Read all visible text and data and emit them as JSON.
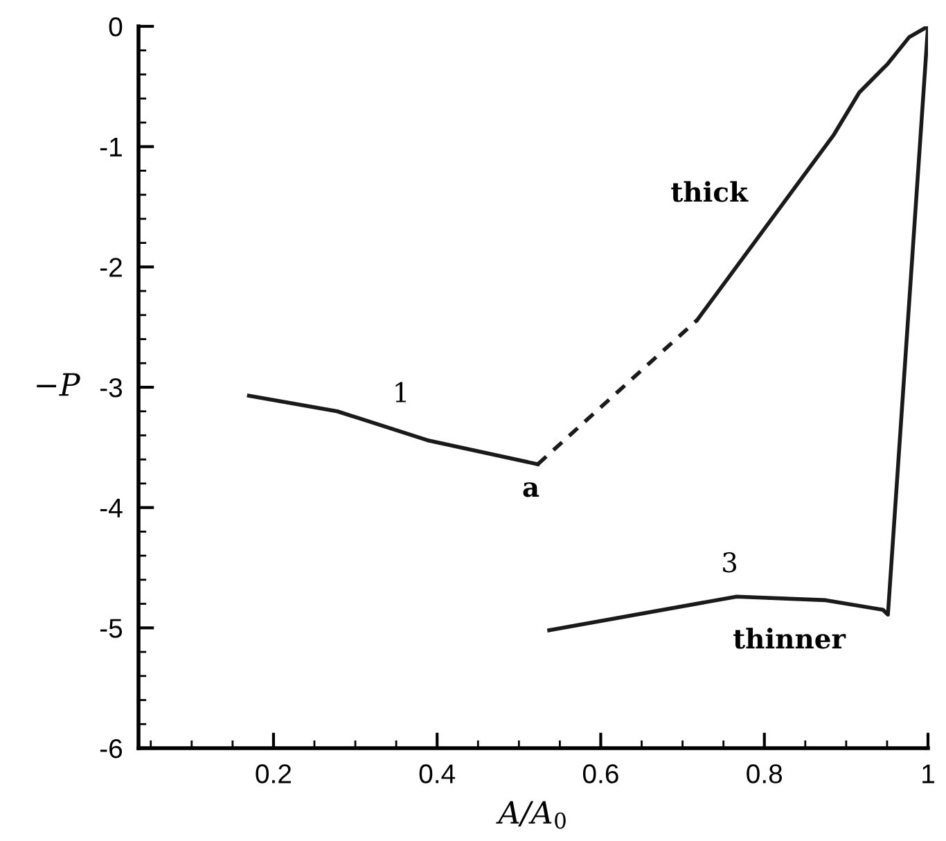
{
  "chart_data": {
    "type": "line",
    "xlabel": "A/A$_{0}$",
    "ylabel": "−P",
    "series": [
      {
        "color": "#1a1a1a",
        "line_style": "solid",
        "x": [
          0.17,
          0.278,
          0.388,
          0.523
        ],
        "values": [
          -3.07,
          -3.2,
          -3.44,
          -3.64
        ]
      },
      {
        "color": "#1a1a1a",
        "line_style": "dashed",
        "x": [
          0.523,
          0.718
        ],
        "values": [
          -3.64,
          -2.44
        ]
      },
      {
        "color": "#1a1a1a",
        "line_style": "solid",
        "x": [
          0.718,
          0.885,
          0.916,
          0.951,
          0.977,
          1.0,
          0.951,
          0.945,
          0.875,
          0.766,
          0.537
        ],
        "values": [
          -2.44,
          -0.9,
          -0.55,
          -0.31,
          -0.09,
          0,
          -4.89,
          -4.85,
          -4.77,
          -4.74,
          -5.02
        ]
      }
    ],
    "annotations": [
      "1",
      "thick",
      {
        "text": "a",
        "x": 0.523,
        "y": -3.64
      },
      "3",
      "thinner"
    ],
    "xlim": [
      0.035,
      1.0
    ],
    "ylim": [
      -6,
      0
    ],
    "xticks": [
      {
        "value": 0.05,
        "label": null
      },
      {
        "value": 0.1,
        "label": null
      },
      {
        "value": 0.15,
        "label": null
      },
      0.2,
      {
        "value": 0.25,
        "label": null
      },
      {
        "value": 0.3,
        "label": null
      },
      {
        "value": 0.35,
        "label": null
      },
      0.4,
      {
        "value": 0.45,
        "label": null
      },
      {
        "value": 0.5,
        "label": null
      },
      {
        "value": 0.55,
        "label": null
      },
      0.6,
      {
        "value": 0.65,
        "label": null
      },
      {
        "value": 0.7,
        "label": null
      },
      {
        "value": 0.75,
        "label": null
      },
      0.8,
      {
        "value": 0.85,
        "label": null
      },
      {
        "value": 0.9,
        "label": null
      },
      {
        "value": 0.95,
        "label": null
      },
      1
    ],
    "yticks": [
      -6,
      {
        "value": -5.8,
        "label": null
      },
      {
        "value": -5.6,
        "label": null
      },
      {
        "value": -5.4,
        "label": null
      },
      {
        "value": -5.2,
        "label": null
      },
      -5,
      {
        "value": -4.8,
        "label": null
      },
      {
        "value": -4.6,
        "label": null
      },
      {
        "value": -4.4,
        "label": null
      },
      {
        "value": -4.2,
        "label": null
      },
      -4,
      {
        "value": -3.8,
        "label": null
      },
      {
        "value": -3.6,
        "label": null
      },
      {
        "value": -3.4,
        "label": null
      },
      {
        "value": -3.2,
        "label": null
      },
      -3,
      {
        "value": -2.8,
        "label": null
      },
      {
        "value": -2.6,
        "label": null
      },
      {
        "value": -2.4,
        "label": null
      },
      {
        "value": -2.2,
        "label": null
      },
      -2,
      {
        "value": -1.8,
        "label": null
      },
      {
        "value": -1.6,
        "label": null
      },
      {
        "value": -1.4,
        "label": null
      },
      {
        "value": -1.2,
        "label": null
      },
      -1,
      {
        "value": -0.8,
        "label": null
      },
      {
        "value": -0.6,
        "label": null
      },
      {
        "value": -0.4,
        "label": null
      },
      {
        "value": -0.2,
        "label": null
      },
      0
    ],
    "grid": false,
    "legend": false,
    "marker": "none"
  }
}
